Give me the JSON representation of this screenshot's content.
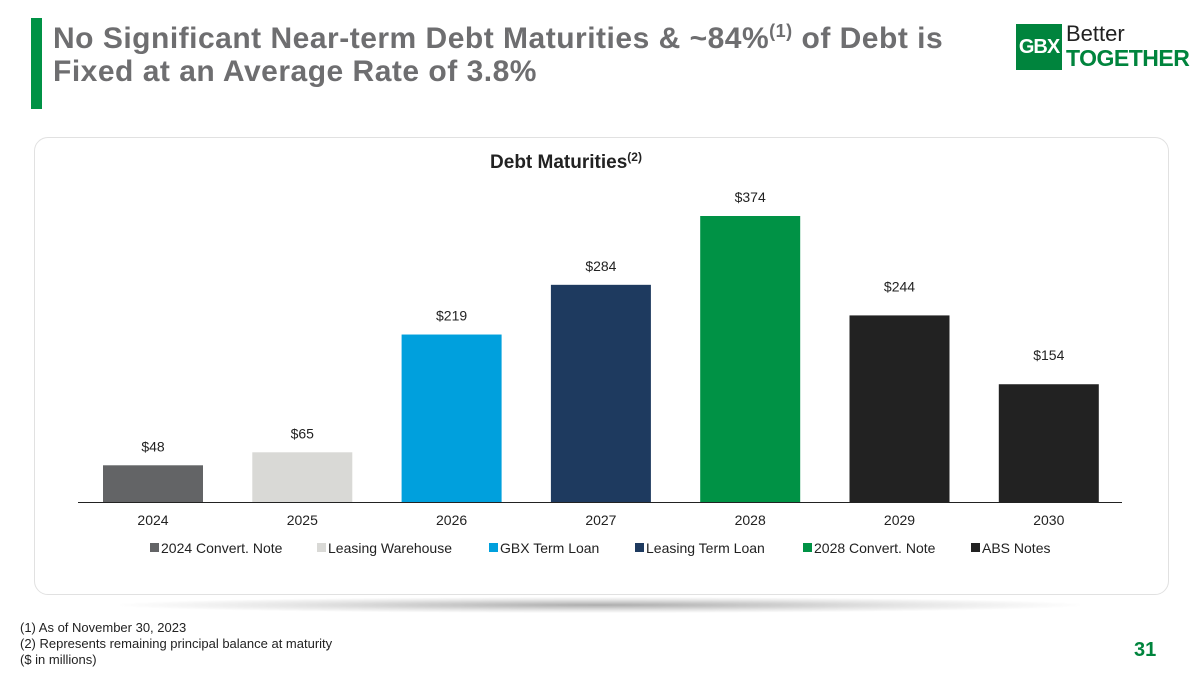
{
  "header": {
    "title_part1": "No Significant Near-term Debt Maturities & ~84%",
    "title_sup": "(1)",
    "title_part2": " of Debt is Fixed at an Average Rate of 3.8%"
  },
  "logo": {
    "mark": "GBX",
    "better": "Better",
    "together": "TOGETHER"
  },
  "chart_data": {
    "type": "bar",
    "title": "Debt Maturities",
    "title_sup": "(2)",
    "categories": [
      "2024",
      "2025",
      "2026",
      "2027",
      "2028",
      "2029",
      "2030"
    ],
    "values": [
      48,
      65,
      219,
      284,
      374,
      244,
      154
    ],
    "value_labels": [
      "$48",
      "$65",
      "$219",
      "$284",
      "$374",
      "$244",
      "$154"
    ],
    "series_names": [
      "2024 Convert. Note",
      "Leasing Warehouse",
      "GBX Term Loan",
      "Leasing Term Loan",
      "2028 Convert. Note",
      "ABS Notes",
      "ABS Notes"
    ],
    "colors": [
      "#636466",
      "#d9d9d6",
      "#00a0dd",
      "#1e3a5f",
      "#009245",
      "#222222",
      "#222222"
    ],
    "legend": [
      {
        "name": "2024 Convert. Note",
        "color": "#636466"
      },
      {
        "name": "Leasing Warehouse",
        "color": "#d9d9d6"
      },
      {
        "name": "GBX Term Loan",
        "color": "#00a0dd"
      },
      {
        "name": "Leasing Term Loan",
        "color": "#1e3a5f"
      },
      {
        "name": "2028 Convert. Note",
        "color": "#009245"
      },
      {
        "name": "ABS Notes",
        "color": "#222222"
      }
    ],
    "xlabel": "",
    "ylabel": "",
    "ylim": [
      0,
      374
    ],
    "grid": false,
    "legend_position": "bottom"
  },
  "footnotes": {
    "note1": "(1)  As of November 30, 2023",
    "note2": "(2)  Represents remaining principal balance at maturity",
    "note3": "($ in millions)"
  },
  "page_number": "31"
}
